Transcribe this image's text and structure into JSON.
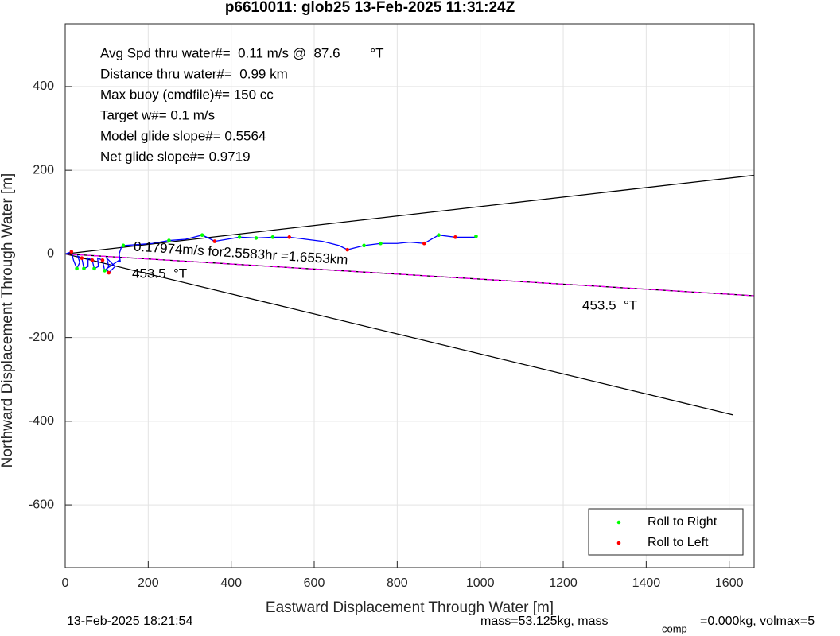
{
  "chart_data": {
    "type": "line",
    "title": "p6610011: glob25 13-Feb-2025 11:31:24Z",
    "x_label": "Eastward Displacement Through Water [m]",
    "y_label": "Northward Displacement Through Water [m]",
    "xlim": [
      0,
      1660
    ],
    "ylim": [
      -750,
      550
    ],
    "xticks": [
      0,
      200,
      400,
      600,
      800,
      1000,
      1200,
      1400,
      1600
    ],
    "yticks": [
      -600,
      -400,
      -200,
      0,
      200,
      400
    ],
    "grid": true,
    "legend": "lower right",
    "info_lines": [
      "Avg Spd thru water#=  0.11 m/s @  87.6        °T",
      "Distance thru water#=  0.99 km",
      "Max buoy (cmdfile)#= 150 cc",
      "Target w#= 0.1 m/s",
      "Model glide slope#= 0.5564",
      "Net glide slope#= 0.9719"
    ],
    "annotations": [
      "0.17974m/s for2.5583hr =1.6553km",
      "453.5  °T",
      "453.5  °T"
    ],
    "footer": [
      "13-Feb-2025 18:21:54",
      "mass=53.125kg, mass",
      "comp",
      "=0.000kg, volmax=5"
    ],
    "lines": [
      {
        "color": "#000000",
        "x": [
          0,
          1660
        ],
        "y": [
          0,
          188
        ]
      },
      {
        "color": "#000000",
        "x": [
          0,
          1610
        ],
        "y": [
          0,
          -385
        ]
      },
      {
        "color": "#000000",
        "x": [
          0,
          1660
        ],
        "y": [
          0,
          -100
        ]
      },
      {
        "color": "#ff00ff",
        "x": [
          0,
          1660
        ],
        "y": [
          0,
          -100
        ]
      }
    ],
    "track": {
      "color": "#0000ff",
      "x": [
        0,
        15,
        20,
        28,
        35,
        30,
        40,
        45,
        55,
        55,
        65,
        70,
        80,
        78,
        90,
        95,
        105,
        100,
        110,
        120,
        105,
        100,
        130,
        133,
        130,
        135,
        140,
        170,
        210,
        250,
        290,
        330,
        345,
        360,
        390,
        420,
        460,
        500,
        540,
        580,
        620,
        660,
        680,
        700,
        720,
        760,
        800,
        830,
        865,
        900,
        940,
        990
      ],
      "y": [
        0,
        5,
        -15,
        -35,
        -20,
        -5,
        -10,
        -35,
        -30,
        -10,
        -15,
        -35,
        -30,
        -10,
        -15,
        -40,
        -30,
        -10,
        -20,
        -30,
        -45,
        -35,
        -15,
        -20,
        0,
        15,
        20,
        22,
        25,
        32,
        35,
        45,
        38,
        30,
        35,
        40,
        38,
        40,
        40,
        35,
        30,
        20,
        10,
        15,
        20,
        25,
        25,
        28,
        25,
        45,
        40,
        40
      ]
    },
    "series": [
      {
        "name": "Roll to Right",
        "color": "#00ff00",
        "x": [
          28,
          45,
          70,
          95,
          140,
          250,
          330,
          420,
          460,
          500,
          720,
          760,
          900,
          990
        ],
        "y": [
          -35,
          -35,
          -35,
          -40,
          20,
          32,
          45,
          40,
          38,
          40,
          20,
          25,
          45,
          42
        ]
      },
      {
        "name": "Roll to Left",
        "color": "#ff0000",
        "x": [
          15,
          40,
          65,
          90,
          105,
          360,
          540,
          680,
          865,
          940
        ],
        "y": [
          5,
          -10,
          -15,
          -15,
          -45,
          30,
          40,
          10,
          25,
          40
        ]
      }
    ]
  }
}
